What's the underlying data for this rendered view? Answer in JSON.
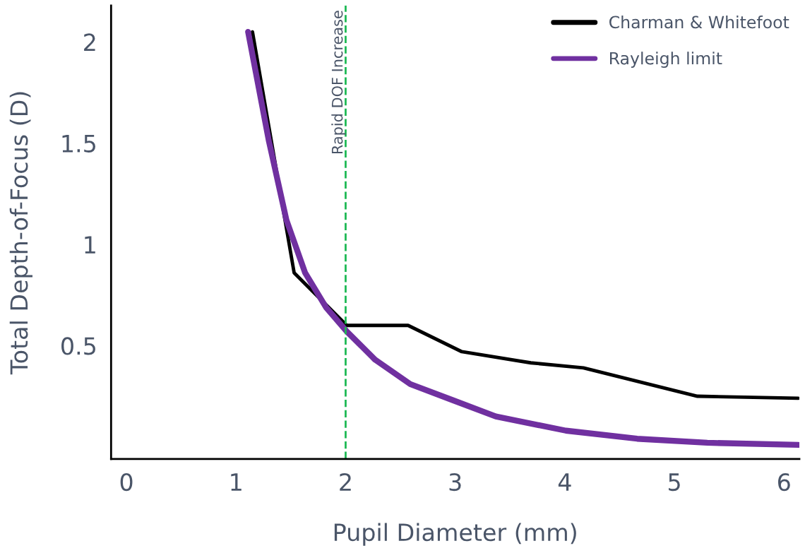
{
  "chart_data": {
    "type": "line",
    "xlabel": "Pupil Diameter (mm)",
    "ylabel": "Total Depth-of-Focus (D)",
    "xlim": [
      -0.14,
      6.14
    ],
    "ylim": [
      -0.06,
      2.18
    ],
    "xticks": [
      0,
      1,
      2,
      3,
      4,
      5,
      6
    ],
    "yticks": [
      0.5,
      1,
      1.5,
      2
    ],
    "series": [
      {
        "name": "Charman & Whitefoot",
        "color": "#000000",
        "x": [
          1.15,
          1.53,
          2.01,
          2.57,
          3.06,
          3.69,
          4.17,
          5.21,
          6.13
        ],
        "values": [
          2.05,
          0.86,
          0.6,
          0.6,
          0.47,
          0.415,
          0.39,
          0.25,
          0.24
        ]
      },
      {
        "name": "Rayleigh limit",
        "color": "#7030a0",
        "x": [
          1.11,
          1.3,
          1.46,
          1.63,
          1.82,
          2.01,
          2.27,
          2.59,
          2.98,
          3.37,
          4.01,
          4.66,
          5.3,
          6.13
        ],
        "values": [
          2.05,
          1.51,
          1.12,
          0.86,
          0.69,
          0.57,
          0.43,
          0.31,
          0.23,
          0.15,
          0.08,
          0.04,
          0.02,
          0.01
        ]
      }
    ],
    "ref_lines": [
      {
        "axis": "x",
        "value": 2,
        "label": "Rapid DOF Increase",
        "color": "#1db954",
        "line_style": "dashed"
      }
    ],
    "grid": false,
    "legend": "top right",
    "marker": "none",
    "line_style": "solid"
  }
}
